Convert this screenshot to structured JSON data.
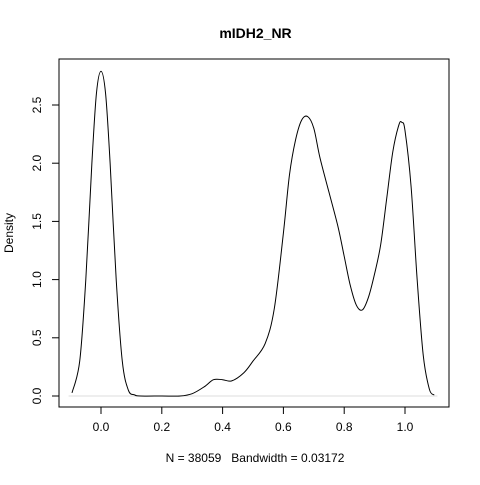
{
  "chart_data": {
    "type": "line",
    "title": "mIDH2_NR",
    "xlabel": "N = 38059   Bandwidth = 0.03172",
    "ylabel": "Density",
    "xlim": [
      -0.1,
      1.1
    ],
    "ylim": [
      0,
      2.8
    ],
    "x_ticks": [
      0.0,
      0.2,
      0.4,
      0.6,
      0.8,
      1.0
    ],
    "x_tick_labels": [
      "0.0",
      "0.2",
      "0.4",
      "0.6",
      "0.8",
      "1.0"
    ],
    "y_ticks": [
      0.0,
      0.5,
      1.0,
      1.5,
      2.0,
      2.5
    ],
    "y_tick_labels": [
      "0.0",
      "0.5",
      "1.0",
      "1.5",
      "2.0",
      "2.5"
    ],
    "grid": false,
    "legend": "none",
    "series": [
      {
        "color": "#000000",
        "x": [
          -0.095,
          -0.07,
          -0.05,
          -0.03,
          -0.015,
          0.0,
          0.015,
          0.03,
          0.05,
          0.07,
          0.09,
          0.11,
          0.13,
          0.2,
          0.26,
          0.3,
          0.34,
          0.37,
          0.4,
          0.43,
          0.47,
          0.5,
          0.54,
          0.57,
          0.6,
          0.62,
          0.64,
          0.66,
          0.68,
          0.7,
          0.72,
          0.75,
          0.78,
          0.8,
          0.82,
          0.84,
          0.86,
          0.88,
          0.9,
          0.92,
          0.94,
          0.96,
          0.98,
          0.99,
          1.0,
          1.02,
          1.04,
          1.06,
          1.08,
          1.095
        ],
        "y": [
          0.03,
          0.3,
          1.0,
          2.0,
          2.6,
          2.79,
          2.6,
          2.0,
          1.0,
          0.3,
          0.05,
          0.01,
          0.0,
          0.0,
          0.0,
          0.02,
          0.08,
          0.14,
          0.14,
          0.13,
          0.2,
          0.3,
          0.45,
          0.75,
          1.4,
          1.9,
          2.2,
          2.37,
          2.4,
          2.3,
          2.05,
          1.75,
          1.45,
          1.2,
          0.95,
          0.78,
          0.74,
          0.85,
          1.05,
          1.3,
          1.7,
          2.1,
          2.33,
          2.35,
          2.28,
          1.8,
          1.0,
          0.35,
          0.06,
          0.01
        ]
      }
    ]
  }
}
